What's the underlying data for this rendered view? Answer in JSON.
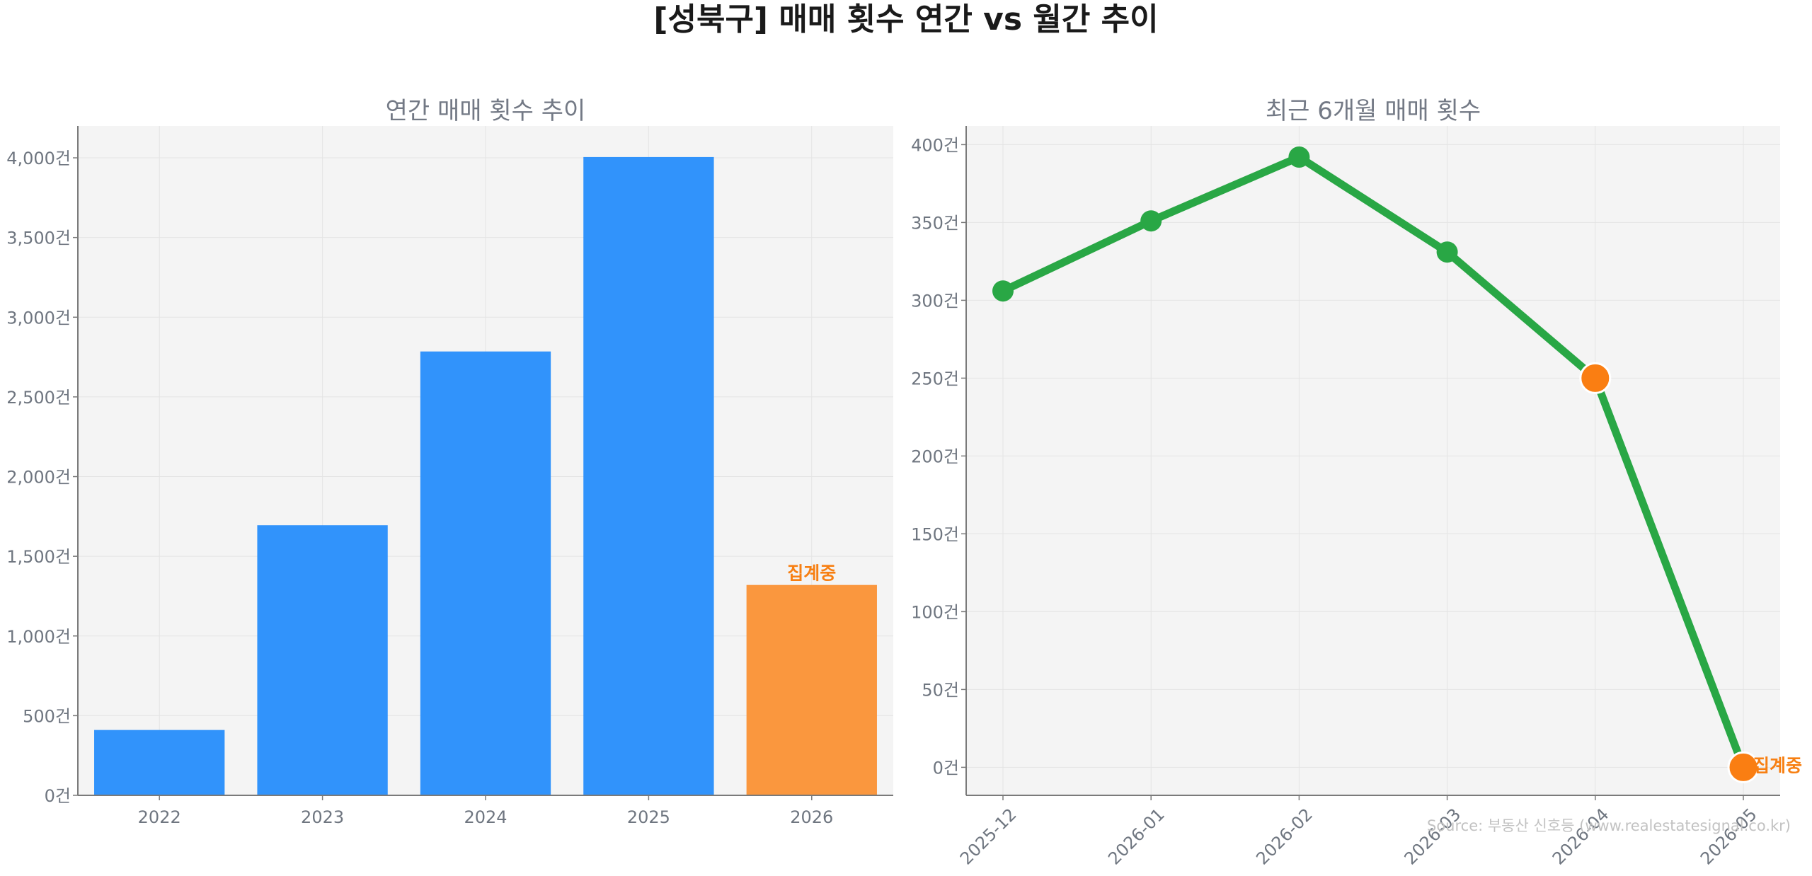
{
  "suptitle": "[성북구] 매매 횟수 연간 vs 월간 추이",
  "source": "Source: 부동산 신호등 (www.realestatesignal.co.kr)",
  "colors": {
    "background": "#ffffff",
    "panel": "#f4f4f4",
    "grid": "#e4e4e4",
    "axis": "#7a7a7a",
    "tick_text": "#6f7680",
    "title_text": "#737985",
    "suptitle_text": "#1a1a1a",
    "bar": "#3193fb",
    "bar_partial": "#fa973e",
    "partial_label": "#f77f12",
    "line": "#29a745",
    "marker": "#29a745",
    "marker_partial": "#fa7e12",
    "source_text": "#c2c2c2"
  },
  "chart_data": [
    {
      "type": "bar",
      "title": "연간 매매 횟수 추이",
      "categories": [
        "2022",
        "2023",
        "2024",
        "2025",
        "2026"
      ],
      "values": [
        410,
        1695,
        2785,
        4005,
        1320
      ],
      "partial_index": 4,
      "partial_label": "집계중",
      "ylim": [
        0,
        4200
      ],
      "yticks": [
        0,
        500,
        1000,
        1500,
        2000,
        2500,
        3000,
        3500,
        4000
      ],
      "ytick_labels": [
        "0건",
        "500건",
        "1,000건",
        "1,500건",
        "2,000건",
        "2,500건",
        "3,000건",
        "3,500건",
        "4,000건"
      ],
      "xlabel": "",
      "ylabel": "",
      "grid": true
    },
    {
      "type": "line",
      "title": "최근 6개월 매매 횟수",
      "categories": [
        "2025-12",
        "2026-01",
        "2026-02",
        "2026-03",
        "2026-04",
        "2026-05"
      ],
      "values": [
        306,
        351,
        392,
        331,
        250,
        0
      ],
      "partial_indices": [
        4,
        5
      ],
      "partial_label": "집계중",
      "partial_label_index": 5,
      "ylim": [
        -18,
        412
      ],
      "yticks": [
        0,
        50,
        100,
        150,
        200,
        250,
        300,
        350,
        400
      ],
      "ytick_labels": [
        "0건",
        "50건",
        "100건",
        "150건",
        "200건",
        "250건",
        "300건",
        "350건",
        "400건"
      ],
      "xtick_rotation": 45,
      "xlabel": "",
      "ylabel": "",
      "grid": true
    }
  ]
}
